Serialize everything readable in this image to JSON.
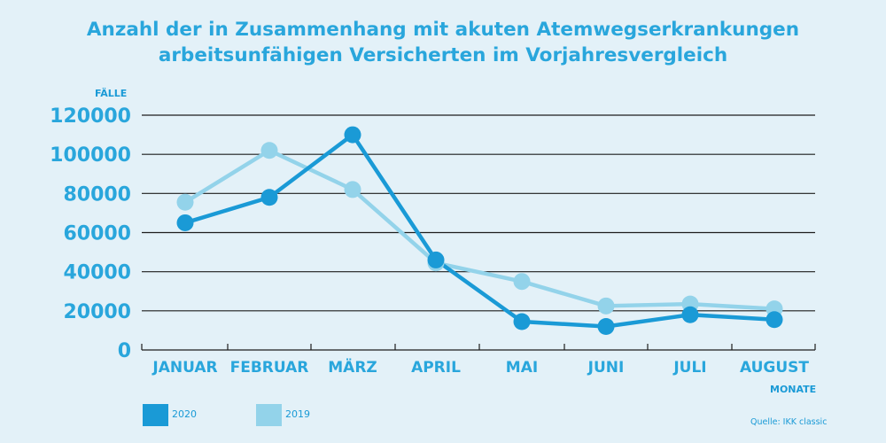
{
  "chart_data": {
    "type": "line",
    "title_line1": "Anzahl der in Zusammenhang mit akuten Atemwegserkrankungen",
    "title_line2": "arbeitsunfähigen Versicherten im Vorjahresvergleich",
    "ylabel": "FÄLLE",
    "xlabel": "MONATE",
    "categories": [
      "JANUAR",
      "FEBRUAR",
      "MÄRZ",
      "APRIL",
      "MAI",
      "JUNI",
      "JULI",
      "AUGUST"
    ],
    "yticks": [
      "0",
      "20000",
      "40000",
      "60000",
      "80000",
      "100000",
      "120000"
    ],
    "ylim": [
      0,
      120000
    ],
    "grid": true,
    "legend_position": "bottom-left",
    "series": [
      {
        "name": "2020",
        "color": "#1a9ad6",
        "values": [
          65000,
          78000,
          110000,
          46000,
          14500,
          12000,
          18000,
          15500
        ]
      },
      {
        "name": "2019",
        "color": "#93d3ea",
        "values": [
          75500,
          102000,
          82000,
          44500,
          35000,
          22500,
          23500,
          21000
        ]
      }
    ],
    "source": "Quelle: IKK classic"
  }
}
